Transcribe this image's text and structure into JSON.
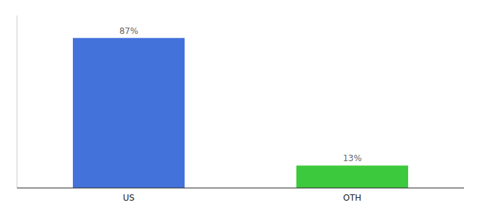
{
  "chart_data": {
    "type": "bar",
    "categories": [
      "US",
      "OTH"
    ],
    "values": [
      87,
      13
    ],
    "value_labels": [
      "87%",
      "13%"
    ],
    "colors": [
      "#4472db",
      "#3dc93d"
    ],
    "ylim": [
      0,
      100
    ],
    "data_labels": true,
    "tick_labels": "x"
  }
}
